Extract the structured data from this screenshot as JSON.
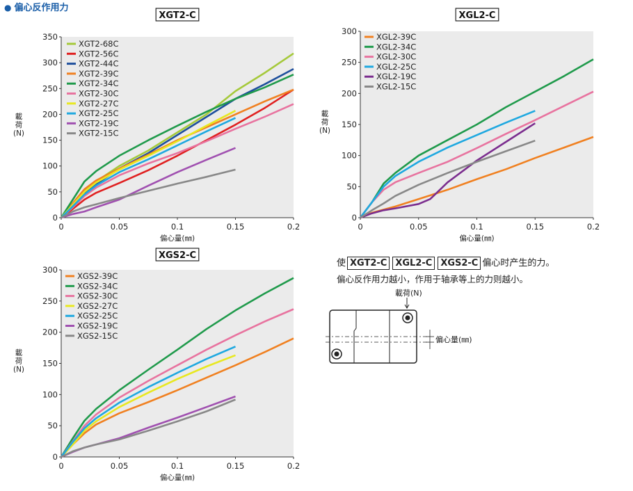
{
  "header": {
    "bullet": "●",
    "title": "偏心反作用力"
  },
  "axis_text": {
    "xlabel": "偏心量(㎜)",
    "ylabel_chars": [
      "載",
      "荷",
      "(N)"
    ]
  },
  "note": {
    "prefix": "使",
    "models": [
      "XGT2-C",
      "XGL2-C",
      "XGS2-C"
    ],
    "suffix": "偏心时产生的力。",
    "line2": "偏心反作用力越小，作用于轴承等上的力则越小。"
  },
  "diagram": {
    "load_label": "載荷(N)",
    "offset_label": "偏心量(㎜)"
  },
  "chart_data": [
    {
      "type": "line",
      "title": "XGT2-C",
      "xlabel": "偏心量(㎜)",
      "ylabel": "載荷(N)",
      "xlim": [
        0,
        0.2
      ],
      "ylim": [
        0,
        350
      ],
      "xticks": [
        "0",
        "0.05",
        "0.1",
        "0.15",
        "0.2"
      ],
      "yticks": [
        "0",
        "50",
        "100",
        "150",
        "200",
        "250",
        "300",
        "350"
      ],
      "legend": "top-left",
      "grid": false,
      "series": [
        {
          "name": "XGT2-68C",
          "color": "#a5c93a",
          "points": [
            [
              0,
              0
            ],
            [
              0.01,
              25
            ],
            [
              0.02,
              52
            ],
            [
              0.03,
              70
            ],
            [
              0.05,
              100
            ],
            [
              0.075,
              130
            ],
            [
              0.1,
              165
            ],
            [
              0.125,
              200
            ],
            [
              0.15,
              245
            ],
            [
              0.175,
              280
            ],
            [
              0.2,
              318
            ]
          ]
        },
        {
          "name": "XGT2-56C",
          "color": "#e02020",
          "points": [
            [
              0,
              0
            ],
            [
              0.01,
              17
            ],
            [
              0.02,
              35
            ],
            [
              0.03,
              48
            ],
            [
              0.05,
              67
            ],
            [
              0.075,
              92
            ],
            [
              0.1,
              120
            ],
            [
              0.125,
              150
            ],
            [
              0.15,
              180
            ],
            [
              0.175,
              212
            ],
            [
              0.2,
              248
            ]
          ]
        },
        {
          "name": "XGT2-44C",
          "color": "#1e4f9c",
          "points": [
            [
              0,
              0
            ],
            [
              0.01,
              24
            ],
            [
              0.02,
              48
            ],
            [
              0.03,
              65
            ],
            [
              0.05,
              95
            ],
            [
              0.075,
              125
            ],
            [
              0.1,
              160
            ],
            [
              0.125,
              195
            ],
            [
              0.15,
              230
            ],
            [
              0.175,
              258
            ],
            [
              0.2,
              288
            ]
          ]
        },
        {
          "name": "XGT2-39C",
          "color": "#f08020",
          "points": [
            [
              0,
              0
            ],
            [
              0.01,
              28
            ],
            [
              0.02,
              55
            ],
            [
              0.03,
              72
            ],
            [
              0.05,
              95
            ],
            [
              0.075,
              122
            ],
            [
              0.1,
              150
            ],
            [
              0.125,
              175
            ],
            [
              0.15,
              200
            ],
            [
              0.175,
              225
            ],
            [
              0.2,
              248
            ]
          ]
        },
        {
          "name": "XGT2-34C",
          "color": "#1f9a4b",
          "points": [
            [
              0,
              0
            ],
            [
              0.01,
              35
            ],
            [
              0.02,
              70
            ],
            [
              0.03,
              90
            ],
            [
              0.05,
              120
            ],
            [
              0.075,
              150
            ],
            [
              0.1,
              178
            ],
            [
              0.125,
              205
            ],
            [
              0.15,
              230
            ],
            [
              0.175,
              252
            ],
            [
              0.2,
              277
            ]
          ]
        },
        {
          "name": "XGT2-30C",
          "color": "#e8739f",
          "points": [
            [
              0,
              0
            ],
            [
              0.01,
              20
            ],
            [
              0.02,
              42
            ],
            [
              0.03,
              58
            ],
            [
              0.05,
              82
            ],
            [
              0.075,
              105
            ],
            [
              0.1,
              125
            ],
            [
              0.125,
              148
            ],
            [
              0.15,
              172
            ],
            [
              0.175,
              195
            ],
            [
              0.2,
              220
            ]
          ]
        },
        {
          "name": "XGT2-27C",
          "color": "#e8e820",
          "points": [
            [
              0,
              0
            ],
            [
              0.01,
              25
            ],
            [
              0.02,
              50
            ],
            [
              0.03,
              68
            ],
            [
              0.05,
              93
            ],
            [
              0.075,
              120
            ],
            [
              0.1,
              148
            ],
            [
              0.125,
              178
            ],
            [
              0.15,
              207
            ]
          ]
        },
        {
          "name": "XGT2-25C",
          "color": "#1ea8e0",
          "points": [
            [
              0,
              0
            ],
            [
              0.01,
              22
            ],
            [
              0.02,
              45
            ],
            [
              0.03,
              62
            ],
            [
              0.05,
              88
            ],
            [
              0.075,
              113
            ],
            [
              0.1,
              140
            ],
            [
              0.125,
              167
            ],
            [
              0.15,
              193
            ]
          ]
        },
        {
          "name": "XGT2-19C",
          "color": "#a050b0",
          "points": [
            [
              0,
              0
            ],
            [
              0.01,
              7
            ],
            [
              0.02,
              12
            ],
            [
              0.03,
              20
            ],
            [
              0.05,
              35
            ],
            [
              0.075,
              62
            ],
            [
              0.1,
              88
            ],
            [
              0.125,
              112
            ],
            [
              0.15,
              135
            ]
          ]
        },
        {
          "name": "XGT2-15C",
          "color": "#888888",
          "points": [
            [
              0,
              0
            ],
            [
              0.01,
              12
            ],
            [
              0.02,
              20
            ],
            [
              0.03,
              26
            ],
            [
              0.05,
              38
            ],
            [
              0.075,
              52
            ],
            [
              0.1,
              66
            ],
            [
              0.125,
              79
            ],
            [
              0.15,
              93
            ]
          ]
        }
      ]
    },
    {
      "type": "line",
      "title": "XGL2-C",
      "xlabel": "偏心量(㎜)",
      "ylabel": "載荷(N)",
      "xlim": [
        0,
        0.2
      ],
      "ylim": [
        0,
        300
      ],
      "xticks": [
        "0",
        "0.05",
        "0.1",
        "0.15",
        "0.2"
      ],
      "yticks": [
        "0",
        "50",
        "100",
        "150",
        "200",
        "250",
        "300"
      ],
      "legend": "top-left",
      "grid": false,
      "series": [
        {
          "name": "XGL2-39C",
          "color": "#f08020",
          "points": [
            [
              0,
              0
            ],
            [
              0.01,
              8
            ],
            [
              0.02,
              13
            ],
            [
              0.03,
              18
            ],
            [
              0.05,
              30
            ],
            [
              0.075,
              45
            ],
            [
              0.1,
              62
            ],
            [
              0.125,
              78
            ],
            [
              0.15,
              96
            ],
            [
              0.175,
              113
            ],
            [
              0.2,
              130
            ]
          ]
        },
        {
          "name": "XGL2-34C",
          "color": "#1f9a4b",
          "points": [
            [
              0,
              0
            ],
            [
              0.01,
              25
            ],
            [
              0.02,
              55
            ],
            [
              0.03,
              72
            ],
            [
              0.05,
              100
            ],
            [
              0.075,
              125
            ],
            [
              0.1,
              150
            ],
            [
              0.125,
              178
            ],
            [
              0.15,
              203
            ],
            [
              0.175,
              228
            ],
            [
              0.2,
              255
            ]
          ]
        },
        {
          "name": "XGL2-30C",
          "color": "#e8739f",
          "points": [
            [
              0,
              0
            ],
            [
              0.01,
              25
            ],
            [
              0.02,
              45
            ],
            [
              0.03,
              57
            ],
            [
              0.05,
              72
            ],
            [
              0.075,
              90
            ],
            [
              0.1,
              112
            ],
            [
              0.125,
              135
            ],
            [
              0.15,
              157
            ],
            [
              0.175,
              180
            ],
            [
              0.2,
              203
            ]
          ]
        },
        {
          "name": "XGL2-25C",
          "color": "#1ea8e0",
          "points": [
            [
              0,
              0
            ],
            [
              0.01,
              25
            ],
            [
              0.02,
              50
            ],
            [
              0.03,
              67
            ],
            [
              0.05,
              90
            ],
            [
              0.075,
              113
            ],
            [
              0.1,
              133
            ],
            [
              0.125,
              153
            ],
            [
              0.15,
              172
            ]
          ]
        },
        {
          "name": "XGL2-19C",
          "color": "#7b2d8e",
          "points": [
            [
              0,
              0
            ],
            [
              0.01,
              7
            ],
            [
              0.02,
              12
            ],
            [
              0.03,
              15
            ],
            [
              0.05,
              22
            ],
            [
              0.06,
              30
            ],
            [
              0.075,
              57
            ],
            [
              0.1,
              92
            ],
            [
              0.125,
              122
            ],
            [
              0.15,
              152
            ]
          ]
        },
        {
          "name": "XGL2-15C",
          "color": "#888888",
          "points": [
            [
              0,
              0
            ],
            [
              0.01,
              12
            ],
            [
              0.02,
              23
            ],
            [
              0.03,
              35
            ],
            [
              0.05,
              53
            ],
            [
              0.075,
              72
            ],
            [
              0.1,
              90
            ],
            [
              0.125,
              107
            ],
            [
              0.15,
              124
            ]
          ]
        }
      ]
    },
    {
      "type": "line",
      "title": "XGS2-C",
      "xlabel": "偏心量(㎜)",
      "ylabel": "載荷(N)",
      "xlim": [
        0,
        0.2
      ],
      "ylim": [
        0,
        300
      ],
      "xticks": [
        "0",
        "0.05",
        "0.1",
        "0.15",
        "0.2"
      ],
      "yticks": [
        "0",
        "50",
        "100",
        "150",
        "200",
        "250",
        "300"
      ],
      "legend": "top-left",
      "grid": false,
      "series": [
        {
          "name": "XGS2-39C",
          "color": "#f08020",
          "points": [
            [
              0,
              0
            ],
            [
              0.01,
              20
            ],
            [
              0.02,
              38
            ],
            [
              0.03,
              52
            ],
            [
              0.05,
              70
            ],
            [
              0.075,
              88
            ],
            [
              0.1,
              107
            ],
            [
              0.125,
              127
            ],
            [
              0.15,
              147
            ],
            [
              0.175,
              168
            ],
            [
              0.2,
              190
            ]
          ]
        },
        {
          "name": "XGS2-34C",
          "color": "#1f9a4b",
          "points": [
            [
              0,
              0
            ],
            [
              0.01,
              30
            ],
            [
              0.02,
              58
            ],
            [
              0.03,
              77
            ],
            [
              0.05,
              107
            ],
            [
              0.075,
              140
            ],
            [
              0.1,
              172
            ],
            [
              0.125,
              205
            ],
            [
              0.15,
              235
            ],
            [
              0.175,
              262
            ],
            [
              0.2,
              287
            ]
          ]
        },
        {
          "name": "XGS2-30C",
          "color": "#e8739f",
          "points": [
            [
              0,
              0
            ],
            [
              0.01,
              25
            ],
            [
              0.02,
              50
            ],
            [
              0.03,
              68
            ],
            [
              0.05,
              95
            ],
            [
              0.075,
              122
            ],
            [
              0.1,
              147
            ],
            [
              0.125,
              172
            ],
            [
              0.15,
              195
            ],
            [
              0.175,
              217
            ],
            [
              0.2,
              237
            ]
          ]
        },
        {
          "name": "XGS2-27C",
          "color": "#e8e820",
          "points": [
            [
              0,
              0
            ],
            [
              0.01,
              20
            ],
            [
              0.02,
              42
            ],
            [
              0.03,
              57
            ],
            [
              0.05,
              80
            ],
            [
              0.075,
              103
            ],
            [
              0.1,
              125
            ],
            [
              0.125,
              145
            ],
            [
              0.15,
              163
            ]
          ]
        },
        {
          "name": "XGS2-25C",
          "color": "#1ea8e0",
          "points": [
            [
              0,
              0
            ],
            [
              0.01,
              24
            ],
            [
              0.02,
              46
            ],
            [
              0.03,
              62
            ],
            [
              0.05,
              87
            ],
            [
              0.075,
              112
            ],
            [
              0.1,
              135
            ],
            [
              0.125,
              157
            ],
            [
              0.15,
              177
            ]
          ]
        },
        {
          "name": "XGS2-19C",
          "color": "#a050b0",
          "points": [
            [
              0,
              0
            ],
            [
              0.01,
              8
            ],
            [
              0.02,
              15
            ],
            [
              0.03,
              20
            ],
            [
              0.05,
              30
            ],
            [
              0.075,
              47
            ],
            [
              0.1,
              63
            ],
            [
              0.125,
              80
            ],
            [
              0.15,
              97
            ]
          ]
        },
        {
          "name": "XGS2-15C",
          "color": "#888888",
          "points": [
            [
              0,
              0
            ],
            [
              0.01,
              9
            ],
            [
              0.02,
              15
            ],
            [
              0.03,
              20
            ],
            [
              0.05,
              28
            ],
            [
              0.075,
              42
            ],
            [
              0.1,
              57
            ],
            [
              0.125,
              73
            ],
            [
              0.15,
              92
            ]
          ]
        }
      ]
    }
  ]
}
